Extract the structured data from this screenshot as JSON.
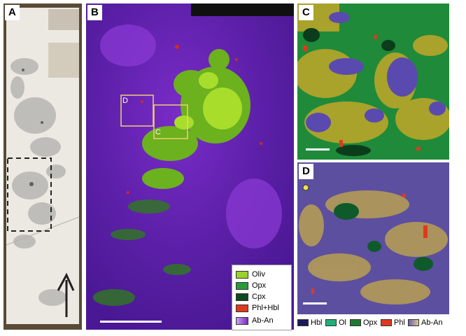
{
  "panels": {
    "a": {
      "label": "A"
    },
    "b": {
      "label": "B",
      "box_d": "D",
      "box_c": "C"
    },
    "c": {
      "label": "C"
    },
    "d": {
      "label": "D"
    }
  },
  "legend_b": {
    "items": [
      {
        "label": "Oliv",
        "color": "#9bd12a"
      },
      {
        "label": "Opx",
        "color": "#2a9a3a"
      },
      {
        "label": "Cpx",
        "color": "#0f4a1e"
      },
      {
        "label": "Phl+Hbl",
        "color": "#e03a1e"
      },
      {
        "label": "Ab-An",
        "color": "#9a4fd0"
      }
    ]
  },
  "legend_cd": {
    "items": [
      {
        "label": "Hbl",
        "color": "#1c1a5a"
      },
      {
        "label": "Ol",
        "color": "#1fb07a"
      },
      {
        "label": "Opx",
        "color": "#1e7a30"
      },
      {
        "label": "Phl",
        "color": "#e0381c"
      },
      {
        "label": "Ab-An",
        "color": "#b8a86a"
      }
    ]
  }
}
